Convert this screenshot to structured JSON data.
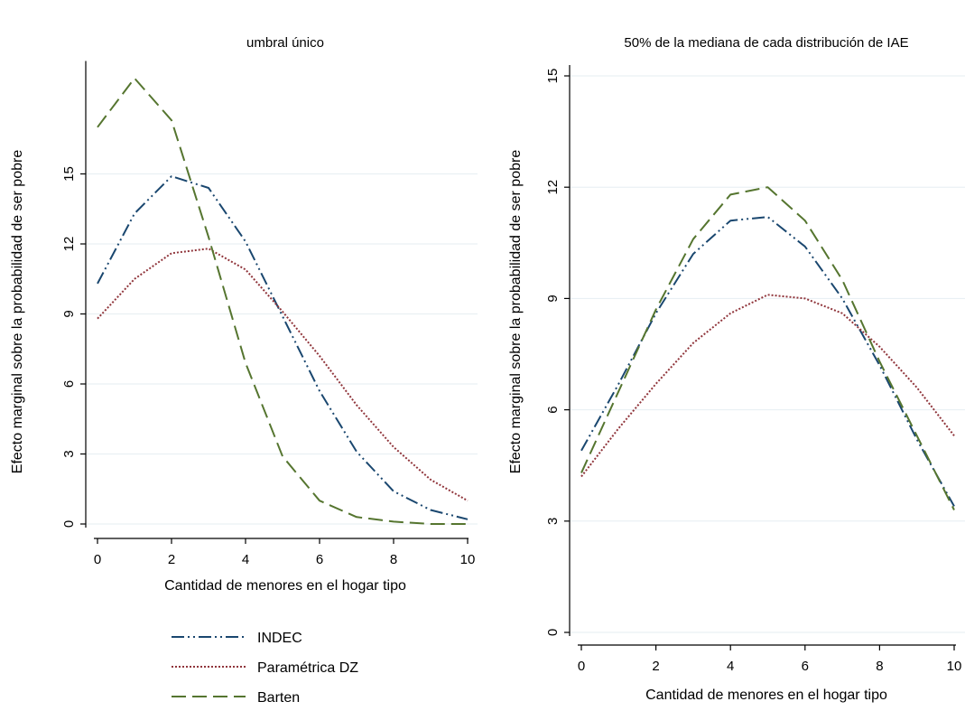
{
  "colors": {
    "INDEC": "#1a476f",
    "Paramétrica DZ": "#90353b",
    "Barten": "#55752f",
    "grid": "#e6eef2",
    "axis": "#000000"
  },
  "legend": {
    "items": [
      {
        "name": "INDEC",
        "dash": "dashdotdot"
      },
      {
        "name": "Paramétrica DZ",
        "dash": "dotted"
      },
      {
        "name": "Barten",
        "dash": "dashed"
      }
    ]
  },
  "chart_data": [
    {
      "type": "line",
      "title": "umbral único",
      "xlabel": "Cantidad de menores en el hogar tipo",
      "ylabel": "Efecto marginal sobre la probabilidad de ser pobre",
      "xlim": [
        0,
        10
      ],
      "ylim": [
        0,
        18
      ],
      "xticks": [
        0,
        2,
        4,
        6,
        8,
        10
      ],
      "yticks": [
        0,
        3,
        6,
        9,
        12,
        15
      ],
      "grid": true,
      "x": [
        0,
        1,
        2,
        3,
        4,
        5,
        6,
        7,
        8,
        9,
        10
      ],
      "series": [
        {
          "name": "INDEC",
          "dash": "dashdotdot",
          "values": [
            10.3,
            13.3,
            14.9,
            14.4,
            12.1,
            8.9,
            5.7,
            3.1,
            1.4,
            0.6,
            0.2
          ]
        },
        {
          "name": "Paramétrica DZ",
          "dash": "dotted",
          "values": [
            8.8,
            10.5,
            11.6,
            11.8,
            10.9,
            9.1,
            7.2,
            5.1,
            3.3,
            1.9,
            1.0
          ]
        },
        {
          "name": "Barten",
          "dash": "dashed",
          "values": [
            17.0,
            19.1,
            17.3,
            12.3,
            6.9,
            2.9,
            1.0,
            0.3,
            0.1,
            0.0,
            0.0
          ]
        }
      ]
    },
    {
      "type": "line",
      "title": "50% de la mediana de cada distribución de IAE",
      "xlabel": "Cantidad de menores en el hogar tipo",
      "ylabel": "Efecto marginal sobre la probabilidad de ser pobre",
      "xlim": [
        0,
        10
      ],
      "ylim": [
        0,
        15
      ],
      "xticks": [
        0,
        2,
        4,
        6,
        8,
        10
      ],
      "yticks": [
        0,
        3,
        6,
        9,
        12,
        15
      ],
      "grid": true,
      "x": [
        0,
        1,
        2,
        3,
        4,
        5,
        6,
        7,
        8,
        9,
        10
      ],
      "series": [
        {
          "name": "INDEC",
          "dash": "dashdotdot",
          "values": [
            4.9,
            6.7,
            8.6,
            10.2,
            11.1,
            11.2,
            10.4,
            9.0,
            7.2,
            5.2,
            3.4
          ]
        },
        {
          "name": "Paramétrica DZ",
          "dash": "dotted",
          "values": [
            4.2,
            5.5,
            6.7,
            7.8,
            8.6,
            9.1,
            9.0,
            8.6,
            7.7,
            6.6,
            5.3
          ]
        },
        {
          "name": "Barten",
          "dash": "dashed",
          "values": [
            4.3,
            6.5,
            8.7,
            10.6,
            11.8,
            12.0,
            11.1,
            9.5,
            7.3,
            5.3,
            3.3
          ]
        }
      ]
    }
  ]
}
